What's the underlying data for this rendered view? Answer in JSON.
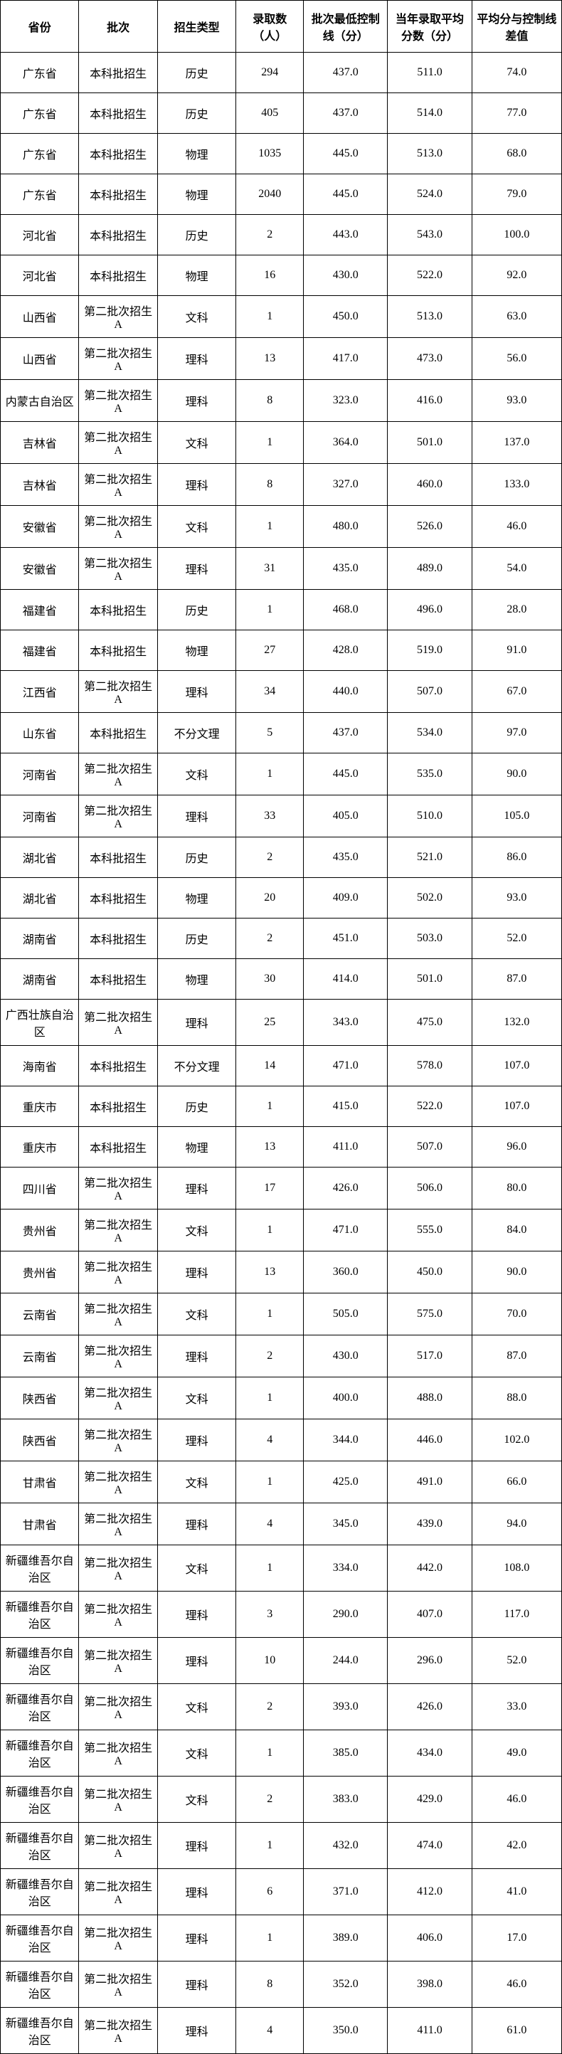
{
  "table": {
    "columns": [
      "省份",
      "批次",
      "招生类型",
      "录取数（人）",
      "批次最低控制线（分）",
      "当年录取平均分数（分）",
      "平均分与控制线差值"
    ],
    "rows": [
      [
        "广东省",
        "本科批招生",
        "历史",
        "294",
        "437.0",
        "511.0",
        "74.0"
      ],
      [
        "广东省",
        "本科批招生",
        "历史",
        "405",
        "437.0",
        "514.0",
        "77.0"
      ],
      [
        "广东省",
        "本科批招生",
        "物理",
        "1035",
        "445.0",
        "513.0",
        "68.0"
      ],
      [
        "广东省",
        "本科批招生",
        "物理",
        "2040",
        "445.0",
        "524.0",
        "79.0"
      ],
      [
        "河北省",
        "本科批招生",
        "历史",
        "2",
        "443.0",
        "543.0",
        "100.0"
      ],
      [
        "河北省",
        "本科批招生",
        "物理",
        "16",
        "430.0",
        "522.0",
        "92.0"
      ],
      [
        "山西省",
        "第二批次招生A",
        "文科",
        "1",
        "450.0",
        "513.0",
        "63.0"
      ],
      [
        "山西省",
        "第二批次招生A",
        "理科",
        "13",
        "417.0",
        "473.0",
        "56.0"
      ],
      [
        "内蒙古自治区",
        "第二批次招生A",
        "理科",
        "8",
        "323.0",
        "416.0",
        "93.0"
      ],
      [
        "吉林省",
        "第二批次招生A",
        "文科",
        "1",
        "364.0",
        "501.0",
        "137.0"
      ],
      [
        "吉林省",
        "第二批次招生A",
        "理科",
        "8",
        "327.0",
        "460.0",
        "133.0"
      ],
      [
        "安徽省",
        "第二批次招生A",
        "文科",
        "1",
        "480.0",
        "526.0",
        "46.0"
      ],
      [
        "安徽省",
        "第二批次招生A",
        "理科",
        "31",
        "435.0",
        "489.0",
        "54.0"
      ],
      [
        "福建省",
        "本科批招生",
        "历史",
        "1",
        "468.0",
        "496.0",
        "28.0"
      ],
      [
        "福建省",
        "本科批招生",
        "物理",
        "27",
        "428.0",
        "519.0",
        "91.0"
      ],
      [
        "江西省",
        "第二批次招生A",
        "理科",
        "34",
        "440.0",
        "507.0",
        "67.0"
      ],
      [
        "山东省",
        "本科批招生",
        "不分文理",
        "5",
        "437.0",
        "534.0",
        "97.0"
      ],
      [
        "河南省",
        "第二批次招生A",
        "文科",
        "1",
        "445.0",
        "535.0",
        "90.0"
      ],
      [
        "河南省",
        "第二批次招生A",
        "理科",
        "33",
        "405.0",
        "510.0",
        "105.0"
      ],
      [
        "湖北省",
        "本科批招生",
        "历史",
        "2",
        "435.0",
        "521.0",
        "86.0"
      ],
      [
        "湖北省",
        "本科批招生",
        "物理",
        "20",
        "409.0",
        "502.0",
        "93.0"
      ],
      [
        "湖南省",
        "本科批招生",
        "历史",
        "2",
        "451.0",
        "503.0",
        "52.0"
      ],
      [
        "湖南省",
        "本科批招生",
        "物理",
        "30",
        "414.0",
        "501.0",
        "87.0"
      ],
      [
        "广西壮族自治区",
        "第二批次招生A",
        "理科",
        "25",
        "343.0",
        "475.0",
        "132.0"
      ],
      [
        "海南省",
        "本科批招生",
        "不分文理",
        "14",
        "471.0",
        "578.0",
        "107.0"
      ],
      [
        "重庆市",
        "本科批招生",
        "历史",
        "1",
        "415.0",
        "522.0",
        "107.0"
      ],
      [
        "重庆市",
        "本科批招生",
        "物理",
        "13",
        "411.0",
        "507.0",
        "96.0"
      ],
      [
        "四川省",
        "第二批次招生A",
        "理科",
        "17",
        "426.0",
        "506.0",
        "80.0"
      ],
      [
        "贵州省",
        "第二批次招生A",
        "文科",
        "1",
        "471.0",
        "555.0",
        "84.0"
      ],
      [
        "贵州省",
        "第二批次招生A",
        "理科",
        "13",
        "360.0",
        "450.0",
        "90.0"
      ],
      [
        "云南省",
        "第二批次招生A",
        "文科",
        "1",
        "505.0",
        "575.0",
        "70.0"
      ],
      [
        "云南省",
        "第二批次招生A",
        "理科",
        "2",
        "430.0",
        "517.0",
        "87.0"
      ],
      [
        "陕西省",
        "第二批次招生A",
        "文科",
        "1",
        "400.0",
        "488.0",
        "88.0"
      ],
      [
        "陕西省",
        "第二批次招生A",
        "理科",
        "4",
        "344.0",
        "446.0",
        "102.0"
      ],
      [
        "甘肃省",
        "第二批次招生A",
        "文科",
        "1",
        "425.0",
        "491.0",
        "66.0"
      ],
      [
        "甘肃省",
        "第二批次招生A",
        "理科",
        "4",
        "345.0",
        "439.0",
        "94.0"
      ],
      [
        "新疆维吾尔自治区",
        "第二批次招生A",
        "文科",
        "1",
        "334.0",
        "442.0",
        "108.0"
      ],
      [
        "新疆维吾尔自治区",
        "第二批次招生A",
        "理科",
        "3",
        "290.0",
        "407.0",
        "117.0"
      ],
      [
        "新疆维吾尔自治区",
        "第二批次招生A",
        "理科",
        "10",
        "244.0",
        "296.0",
        "52.0"
      ],
      [
        "新疆维吾尔自治区",
        "第二批次招生A",
        "文科",
        "2",
        "393.0",
        "426.0",
        "33.0"
      ],
      [
        "新疆维吾尔自治区",
        "第二批次招生A",
        "文科",
        "1",
        "385.0",
        "434.0",
        "49.0"
      ],
      [
        "新疆维吾尔自治区",
        "第二批次招生A",
        "文科",
        "2",
        "383.0",
        "429.0",
        "46.0"
      ],
      [
        "新疆维吾尔自治区",
        "第二批次招生A",
        "理科",
        "1",
        "432.0",
        "474.0",
        "42.0"
      ],
      [
        "新疆维吾尔自治区",
        "第二批次招生A",
        "理科",
        "6",
        "371.0",
        "412.0",
        "41.0"
      ],
      [
        "新疆维吾尔自治区",
        "第二批次招生A",
        "理科",
        "1",
        "389.0",
        "406.0",
        "17.0"
      ],
      [
        "新疆维吾尔自治区",
        "第二批次招生A",
        "理科",
        "8",
        "352.0",
        "398.0",
        "46.0"
      ],
      [
        "新疆维吾尔自治区",
        "第二批次招生A",
        "理科",
        "4",
        "350.0",
        "411.0",
        "61.0"
      ]
    ],
    "styling": {
      "border_color": "#000000",
      "background_color": "#ffffff",
      "text_color": "#000000",
      "font_family": "SimSun",
      "header_fontsize": 16,
      "cell_fontsize": 16,
      "header_fontweight": "bold",
      "cell_fontweight": "normal",
      "column_widths_pct": [
        14,
        14,
        14,
        12,
        15,
        15,
        16
      ]
    }
  }
}
